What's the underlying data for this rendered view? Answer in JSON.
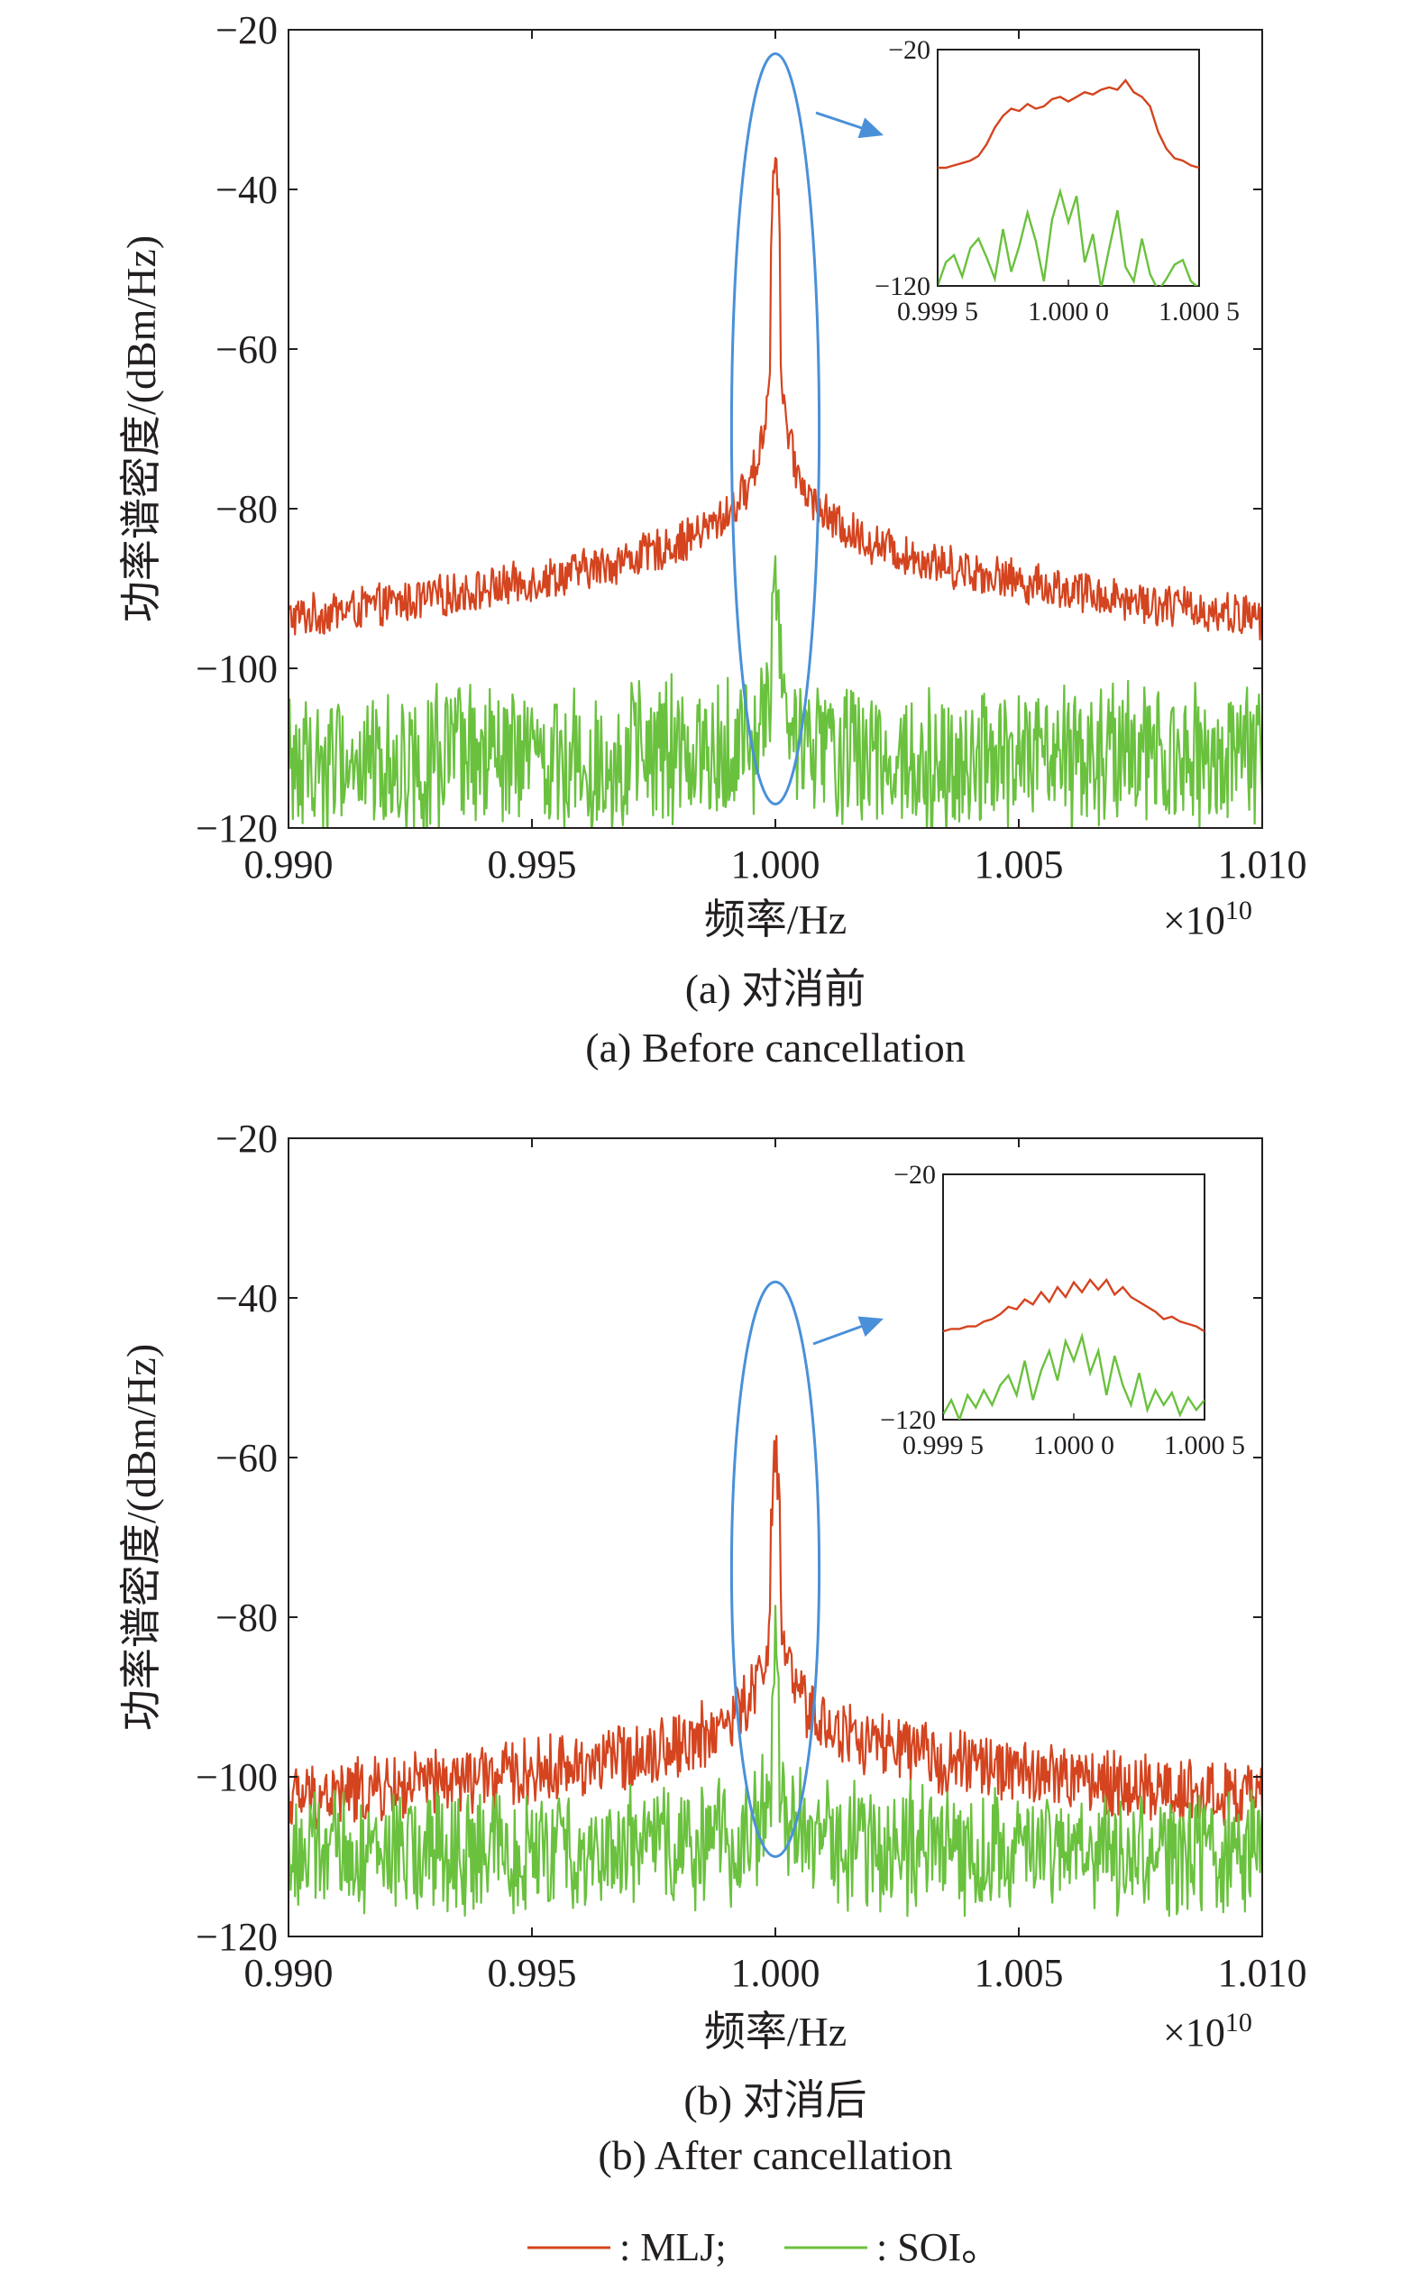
{
  "chart_data": [
    {
      "id": "a",
      "type": "line",
      "ylabel": "功率谱密度/(dBm/Hz)",
      "xlabel": "频率/Hz",
      "x_exponent_base": "×10",
      "x_exponent_power": "10",
      "xlim": [
        0.99,
        1.01
      ],
      "ylim": [
        -120,
        -20
      ],
      "xticks": [
        "0.990",
        "0.995",
        "1.000",
        "1.005",
        "1.010"
      ],
      "yticks": [
        "−20",
        "−40",
        "−60",
        "−80",
        "−100",
        "−120"
      ],
      "grid": false,
      "caption_zh": "(a) 对消前",
      "caption_en": "(a) Before cancellation",
      "series": [
        {
          "name": "MLJ",
          "color": "#d4441f",
          "profile": {
            "peak": -34,
            "center": 1.0,
            "near_width": 0.00015,
            "near_drop": 28,
            "floor_edge": -94,
            "noise": 2.2
          }
        },
        {
          "name": "SOI",
          "color": "#6ac13e",
          "profile": {
            "peak": -87,
            "center": 1.0,
            "near_width": 0.00012,
            "near_drop": 12,
            "floor_edge": -112,
            "noise": 6.5
          }
        }
      ],
      "highlight_ellipse": {
        "x_center": 1.0,
        "y_center": -70,
        "x_half_width": 0.0009,
        "y_half_height": 47,
        "color": "#4a90d9"
      },
      "inset": {
        "xticks": [
          "0.999 5",
          "1.000 0",
          "1.000 5"
        ],
        "yticks": [
          "−20",
          "−120"
        ],
        "xlim": [
          0.9995,
          1.0005
        ],
        "ylim": [
          -120,
          -20
        ],
        "mlj_y": [
          -70,
          -70,
          -69,
          -68,
          -67,
          -65,
          -60,
          -53,
          -48,
          -45,
          -46,
          -43,
          -45,
          -44,
          -41,
          -40,
          -42,
          -40,
          -38,
          -39,
          -37,
          -36,
          -37,
          -33,
          -38,
          -40,
          -44,
          -55,
          -62,
          -66,
          -67,
          -69,
          -70
        ],
        "soi_y": [
          -120,
          -110,
          -107,
          -116,
          -104,
          -100,
          -108,
          -117,
          -96,
          -114,
          -103,
          -89,
          -101,
          -118,
          -92,
          -80,
          -93,
          -82,
          -110,
          -98,
          -121,
          -104,
          -88,
          -112,
          -118,
          -100,
          -115,
          -122,
          -117,
          -111,
          -109,
          -118,
          -121
        ]
      }
    },
    {
      "id": "b",
      "type": "line",
      "ylabel": "功率谱密度/(dBm/Hz)",
      "xlabel": "频率/Hz",
      "x_exponent_base": "×10",
      "x_exponent_power": "10",
      "xlim": [
        0.99,
        1.01
      ],
      "ylim": [
        -120,
        -20
      ],
      "xticks": [
        "0.990",
        "0.995",
        "1.000",
        "1.005",
        "1.010"
      ],
      "yticks": [
        "−20",
        "−40",
        "−60",
        "−80",
        "−100",
        "−120"
      ],
      "grid": false,
      "caption_zh": "(b) 对消后",
      "caption_en": "(b) After cancellation",
      "series": [
        {
          "name": "MLJ",
          "color": "#d4441f",
          "profile": {
            "peak": -59,
            "center": 1.0,
            "near_width": 0.00015,
            "near_drop": 24,
            "floor_edge": -103,
            "noise": 3.5
          }
        },
        {
          "name": "SOI",
          "color": "#6ac13e",
          "profile": {
            "peak": -82,
            "center": 1.0,
            "near_width": 0.00012,
            "near_drop": 18,
            "floor_edge": -110,
            "noise": 5.5
          }
        }
      ],
      "highlight_ellipse": {
        "x_center": 1.0,
        "y_center": -74,
        "x_half_width": 0.0009,
        "y_half_height": 36,
        "color": "#4a90d9"
      },
      "inset": {
        "xticks": [
          "0.999 5",
          "1.000 0",
          "1.000 5"
        ],
        "yticks": [
          "−20",
          "−120"
        ],
        "xlim": [
          0.9995,
          1.0005
        ],
        "ylim": [
          -120,
          -20
        ],
        "mlj_y": [
          -84,
          -83,
          -83,
          -82,
          -82,
          -80,
          -79,
          -77,
          -74,
          -75,
          -71,
          -73,
          -68,
          -72,
          -66,
          -70,
          -64,
          -68,
          -63,
          -67,
          -63,
          -69,
          -66,
          -70,
          -72,
          -74,
          -76,
          -79,
          -78,
          -80,
          -81,
          -82,
          -84
        ],
        "soi_y": [
          -118,
          -112,
          -120,
          -110,
          -115,
          -108,
          -114,
          -106,
          -102,
          -110,
          -96,
          -112,
          -100,
          -92,
          -104,
          -88,
          -96,
          -86,
          -101,
          -92,
          -110,
          -94,
          -106,
          -114,
          -101,
          -116,
          -108,
          -114,
          -109,
          -118,
          -111,
          -116,
          -112
        ]
      }
    }
  ],
  "legend": {
    "items": [
      {
        "label": ": MLJ;",
        "color": "#d4441f"
      },
      {
        "label": ": SOI。",
        "color": "#6ac13e"
      }
    ]
  }
}
